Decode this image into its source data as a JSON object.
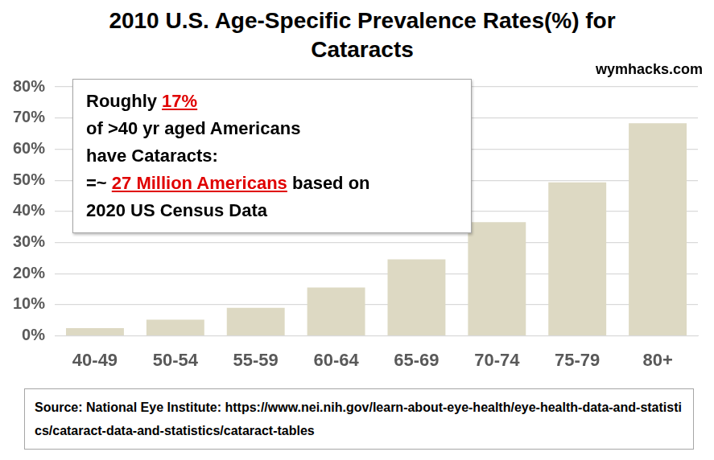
{
  "chart_data": {
    "type": "bar",
    "title": "2010 U.S. Age-Specific Prevalence Rates(%) for Cataracts",
    "categories": [
      "40-49",
      "50-54",
      "55-59",
      "60-64",
      "65-69",
      "70-74",
      "75-79",
      "80+"
    ],
    "values": [
      2.5,
      5.2,
      9.0,
      15.5,
      24.6,
      36.5,
      49.3,
      68.3
    ],
    "color": "#ddd9c3",
    "ylim": [
      0,
      80
    ],
    "yticks": [
      {
        "value": 0,
        "label": "0%"
      },
      {
        "value": 10,
        "label": "10%"
      },
      {
        "value": 20,
        "label": "20%"
      },
      {
        "value": 30,
        "label": "30%"
      },
      {
        "value": 40,
        "label": "40%"
      },
      {
        "value": 50,
        "label": "50%"
      },
      {
        "value": 60,
        "label": "60%"
      },
      {
        "value": 70,
        "label": "70%"
      },
      {
        "value": 80,
        "label": "80%"
      }
    ],
    "grid": true,
    "annotation": [
      [
        "Roughly ",
        "17%"
      ],
      [
        "of >40 yr aged Americans"
      ],
      [
        "have Cataracts:"
      ],
      [
        "=~ ",
        "27 Million Americans",
        " based on"
      ],
      [
        "2020 US Census Data"
      ]
    ],
    "credit": "wymhacks.com",
    "source": "Source: National Eye Institute: https://www.nei.nih.gov/learn-about-eye-health/eye-health-data-and-statistics/cataract-data-and-statistics/cataract-tables"
  }
}
